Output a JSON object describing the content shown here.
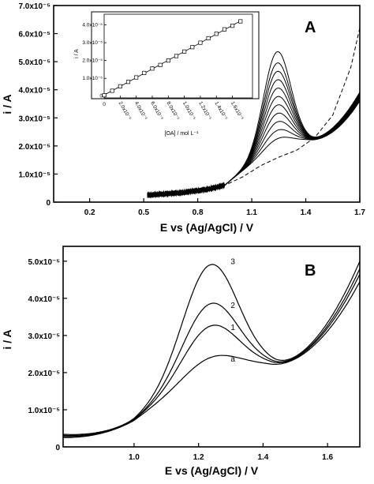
{
  "chart_data": [
    {
      "panel": "A",
      "type": "line",
      "xlabel": "E vs (Ag/AgCl) / V",
      "ylabel": "i / A",
      "xlim": [
        0.0,
        1.7
      ],
      "ylim": [
        0,
        7e-05
      ],
      "x_ticks": [
        0.2,
        0.5,
        0.8,
        1.1,
        1.4,
        1.7
      ],
      "x_tick_labels": [
        "0.2",
        "0.5",
        "0.8",
        "1.1",
        "1.4",
        "1.7"
      ],
      "y_ticks": [
        0,
        1e-05,
        2e-05,
        3e-05,
        4e-05,
        5e-05,
        6e-05,
        7e-05
      ],
      "y_tick_labels": [
        "0",
        "1.0x10⁻⁵",
        "2.0x10⁻⁵",
        "3.0x10⁻⁵",
        "4.0x10⁻⁵",
        "5.0x10⁻⁵",
        "6.0x10⁻⁵",
        "7.0x10⁻⁵"
      ],
      "peak_potential": 1.24,
      "crossover": {
        "x": 1.42,
        "y": 2.2e-05
      },
      "series": [
        {
          "style": "solid",
          "peak": 2.25e-05
        },
        {
          "style": "solid",
          "peak": 2.55e-05
        },
        {
          "style": "solid",
          "peak": 2.85e-05
        },
        {
          "style": "solid",
          "peak": 3.15e-05
        },
        {
          "style": "solid",
          "peak": 3.45e-05
        },
        {
          "style": "solid",
          "peak": 3.75e-05
        },
        {
          "style": "solid",
          "peak": 4.05e-05
        },
        {
          "style": "solid",
          "peak": 4.35e-05
        },
        {
          "style": "solid",
          "peak": 4.65e-05
        },
        {
          "style": "solid",
          "peak": 4.95e-05
        },
        {
          "style": "solid",
          "peak": 5.35e-05
        }
      ],
      "blank": {
        "style": "dashed",
        "x": [
          0.52,
          0.7,
          0.85,
          0.95,
          1.05,
          1.15,
          1.25,
          1.35,
          1.45,
          1.55,
          1.65,
          1.7
        ],
        "y": [
          2.5e-06,
          3.3e-06,
          4.5e-06,
          6e-06,
          9e-06,
          1.3e-05,
          1.6e-05,
          1.85e-05,
          2.3e-05,
          3.1e-05,
          4.8e-05,
          6.2e-05
        ]
      },
      "inset": {
        "type": "scatter",
        "xlabel": "[OA] / mol L⁻¹",
        "ylabel": "i / A",
        "xlim": [
          0,
          1.85e-05
        ],
        "ylim": [
          -1e-06,
          4.6e-05
        ],
        "x_ticks": [
          0,
          2e-06,
          4e-06,
          6e-06,
          8e-06,
          1e-05,
          1.2e-05,
          1.4e-05,
          1.6e-05
        ],
        "x_tick_labels": [
          "0",
          "2.0x10⁻⁶",
          "4.0x10⁻⁶",
          "6.0x10⁻⁶",
          "8.0x10⁻⁶",
          "1.0x10⁻⁵",
          "1.2x10⁻⁵",
          "1.4x10⁻⁵",
          "1.6x10⁻⁵"
        ],
        "y_ticks": [
          0,
          1e-05,
          2e-05,
          3e-05,
          4e-05
        ],
        "y_tick_labels": [
          "0",
          "1.0x10⁻⁵",
          "2.0x10⁻⁵",
          "3.0x10⁻⁵",
          "4.0x10⁻⁵"
        ],
        "x": [
          0,
          1e-06,
          2e-06,
          3e-06,
          4e-06,
          5e-06,
          6e-06,
          7e-06,
          8e-06,
          9e-06,
          1e-05,
          1.1e-05,
          1.2e-05,
          1.3e-05,
          1.4e-05,
          1.5e-05,
          1.6e-05,
          1.7e-05
        ],
        "y": [
          5e-07,
          3e-06,
          5.5e-06,
          8e-06,
          1.05e-05,
          1.3e-05,
          1.55e-05,
          1.75e-05,
          2e-05,
          2.25e-05,
          2.5e-05,
          2.75e-05,
          3e-05,
          3.25e-05,
          3.5e-05,
          3.75e-05,
          3.95e-05,
          4.2e-05
        ]
      }
    },
    {
      "panel": "B",
      "type": "line",
      "xlabel": "E vs (Ag/AgCl) / V",
      "ylabel": "i / A",
      "xlim": [
        0.78,
        1.7
      ],
      "ylim": [
        0,
        5.4e-05
      ],
      "x_ticks": [
        1.0,
        1.2,
        1.4,
        1.6
      ],
      "x_tick_labels": [
        "1.0",
        "1.2",
        "1.4",
        "1.6"
      ],
      "y_ticks": [
        0,
        1e-05,
        2e-05,
        3e-05,
        4e-05,
        5e-05
      ],
      "y_tick_labels": [
        "0",
        "1.0x10⁻⁵",
        "2.0x10⁻⁵",
        "3.0x10⁻⁵",
        "4.0x10⁻⁵",
        "5.0x10⁻⁵"
      ],
      "peak_potential": 1.235,
      "crossover": {
        "x": 1.42,
        "y": 2.18e-05
      },
      "series": [
        {
          "name": "a",
          "peak": 2.4e-05,
          "end": 4.45e-05
        },
        {
          "name": "1",
          "peak": 3.25e-05,
          "end": 4.65e-05
        },
        {
          "name": "2",
          "peak": 3.85e-05,
          "end": 4.8e-05
        },
        {
          "name": "3",
          "peak": 4.9e-05,
          "end": 5e-05
        }
      ]
    }
  ]
}
